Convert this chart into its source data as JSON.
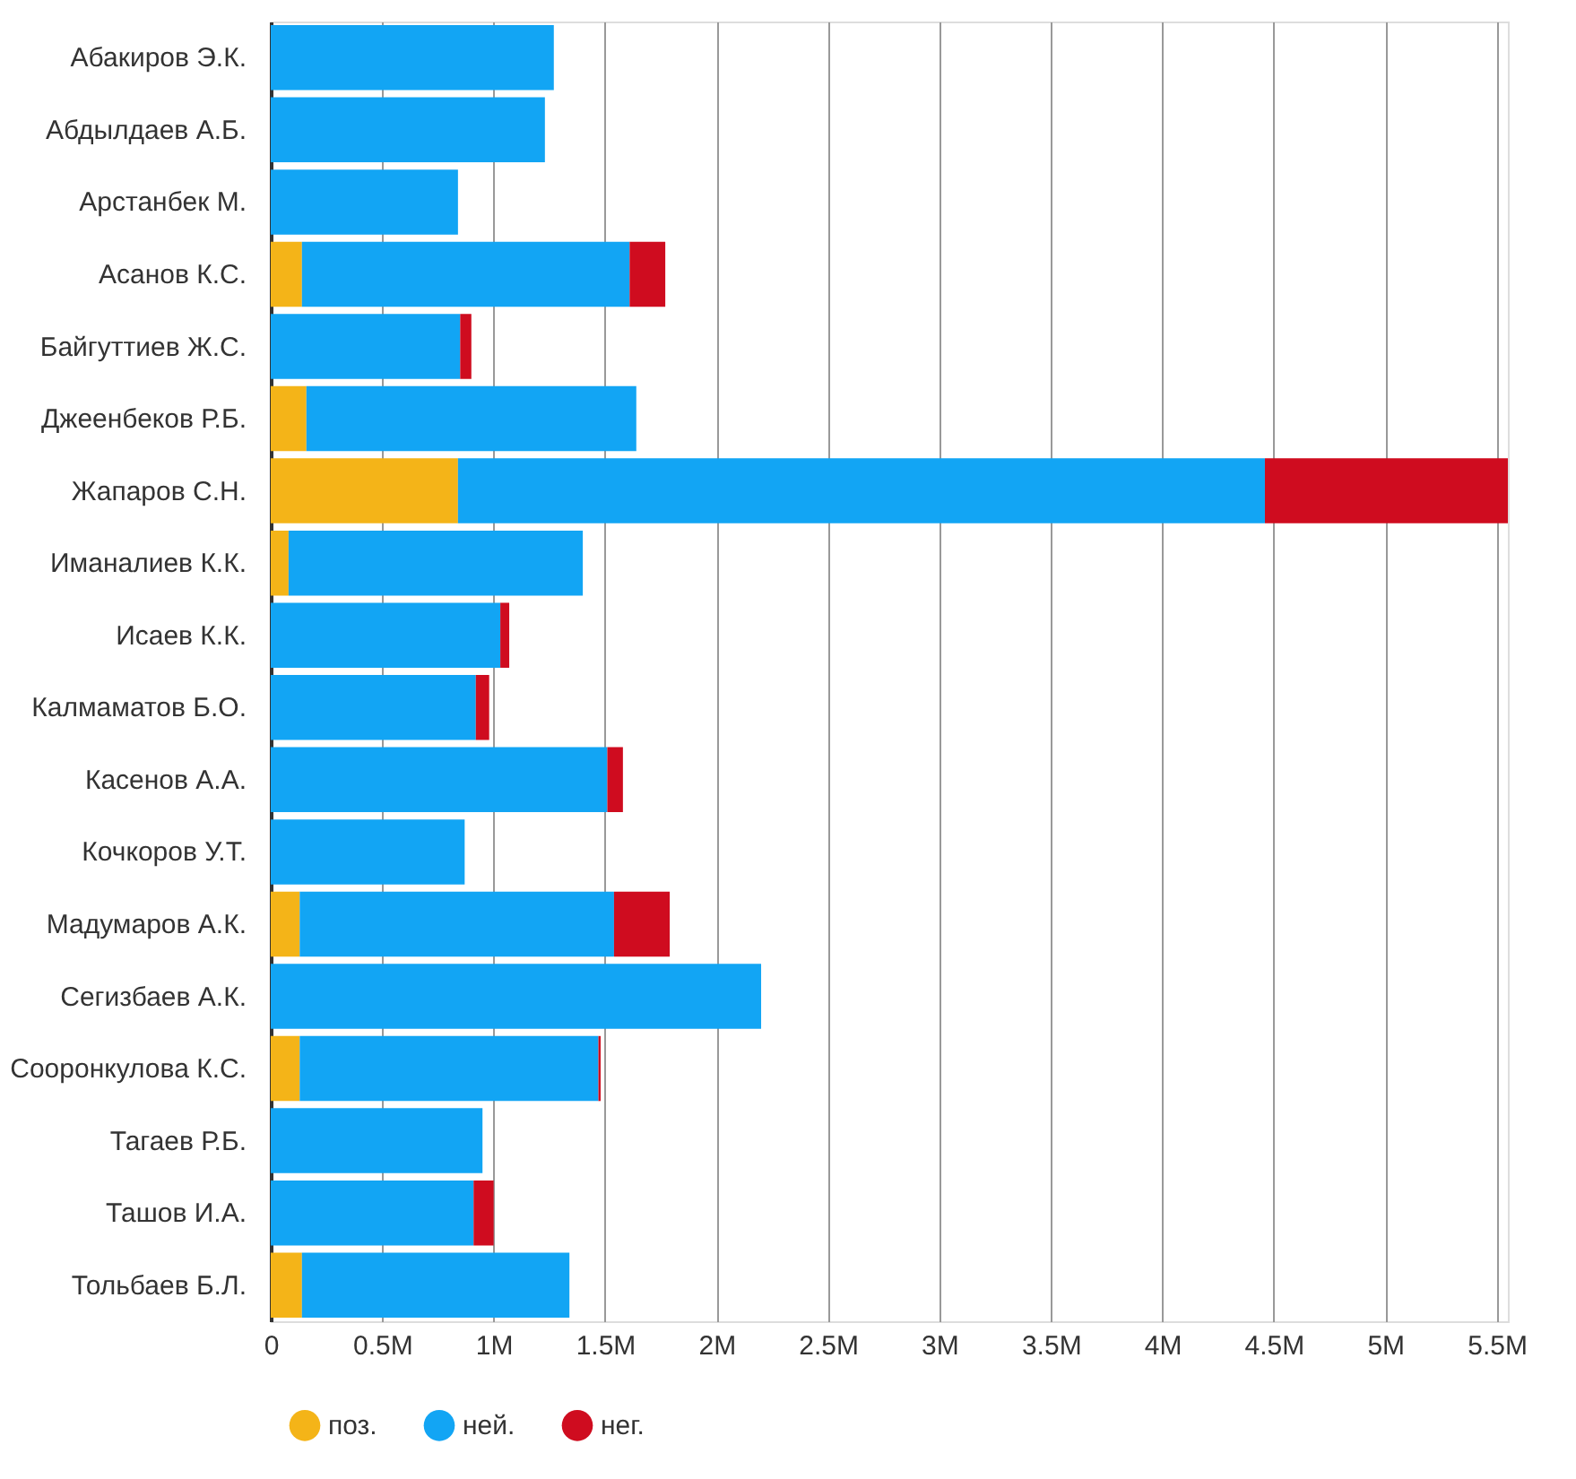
{
  "chart_data": {
    "type": "bar",
    "orientation": "horizontal",
    "stacked": true,
    "categories": [
      "Абакиров Э.К.",
      "Абдылдаев А.Б.",
      "Арстанбек М.",
      "Асанов К.С.",
      "Байгуттиев Ж.С.",
      "Джеенбеков Р.Б.",
      "Жапаров С.Н.",
      "Иманалиев К.К.",
      "Исаев К.К.",
      "Калмаматов Б.О.",
      "Касенов А.А.",
      "Кочкоров У.Т.",
      "Мадумаров А.К.",
      "Сегизбаев А.К.",
      "Сооронкулова К.С.",
      "Тагаев Р.Б.",
      "Ташов И.А.",
      "Тольбаев Б.Л."
    ],
    "series": [
      {
        "name": "поз.",
        "color": "#f4b418",
        "values": [
          0,
          0,
          0,
          140000,
          0,
          160000,
          840000,
          80000,
          0,
          0,
          0,
          0,
          130000,
          0,
          130000,
          0,
          0,
          140000
        ]
      },
      {
        "name": "ней.",
        "color": "#12a5f4",
        "values": [
          1270000,
          1230000,
          840000,
          1470000,
          850000,
          1480000,
          3620000,
          1320000,
          1030000,
          920000,
          1510000,
          870000,
          1410000,
          2200000,
          1340000,
          950000,
          910000,
          1200000
        ]
      },
      {
        "name": "нег.",
        "color": "#cf0c1f",
        "values": [
          0,
          0,
          0,
          160000,
          50000,
          0,
          1090000,
          0,
          40000,
          60000,
          70000,
          0,
          250000,
          0,
          10000,
          0,
          90000,
          0
        ]
      }
    ],
    "xlim": [
      0,
      5550000
    ],
    "xticks": [
      0,
      {
        "value": 500000,
        "label": "0.5M"
      },
      {
        "value": 1000000,
        "label": "1M"
      },
      {
        "value": 1500000,
        "label": "1.5M"
      },
      {
        "value": 2000000,
        "label": "2M"
      },
      {
        "value": 2500000,
        "label": "2.5M"
      },
      {
        "value": 3000000,
        "label": "3M"
      },
      {
        "value": 3500000,
        "label": "3.5M"
      },
      {
        "value": 4000000,
        "label": "4M"
      },
      {
        "value": 4500000,
        "label": "4.5M"
      },
      {
        "value": 5000000,
        "label": "5M"
      },
      {
        "value": 5500000,
        "label": "5.5M"
      }
    ],
    "grid": "x",
    "legend": "bottom"
  }
}
